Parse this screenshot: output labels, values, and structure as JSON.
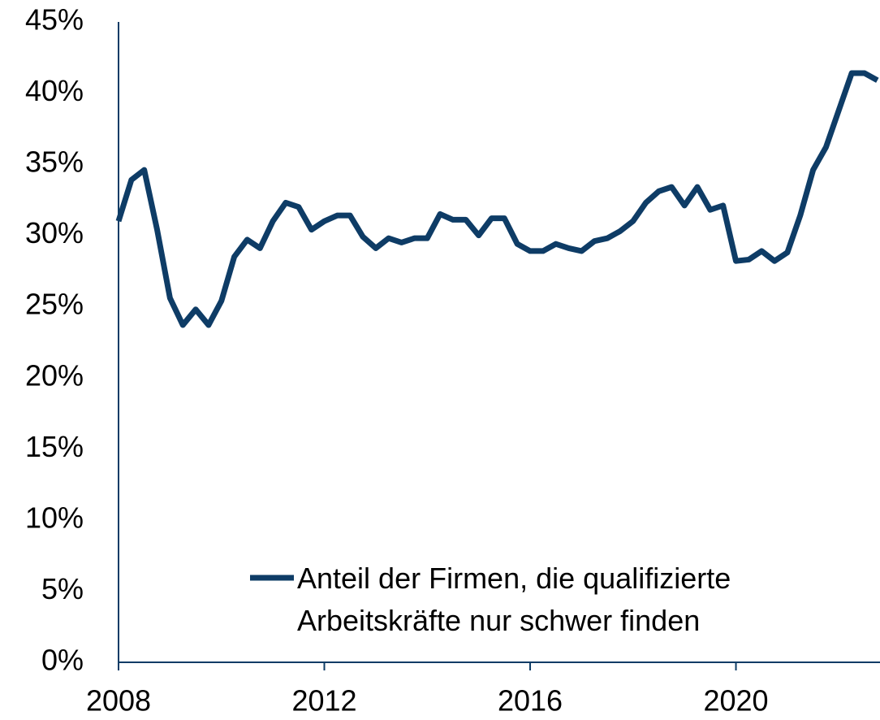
{
  "chart_data": {
    "type": "line",
    "x": [
      2008,
      2008.25,
      2008.5,
      2008.75,
      2009,
      2009.25,
      2009.5,
      2009.75,
      2010,
      2010.25,
      2010.5,
      2010.75,
      2011,
      2011.25,
      2011.5,
      2011.75,
      2012,
      2012.25,
      2012.5,
      2012.75,
      2013,
      2013.25,
      2013.5,
      2013.75,
      2014,
      2014.25,
      2014.5,
      2014.75,
      2015,
      2015.25,
      2015.5,
      2015.75,
      2016,
      2016.25,
      2016.5,
      2016.75,
      2017,
      2017.25,
      2017.5,
      2017.75,
      2018,
      2018.25,
      2018.5,
      2018.75,
      2019,
      2019.25,
      2019.5,
      2019.75,
      2020,
      2020.25,
      2020.5,
      2020.75,
      2021,
      2021.25,
      2021.5,
      2021.75,
      2022,
      2022.25,
      2022.5,
      2022.75
    ],
    "series": [
      {
        "name": "Anteil der Firmen, die qualifizierte Arbeitskräfte nur schwer finden",
        "color": "#0e3c66",
        "values": [
          31.0,
          33.9,
          34.6,
          30.4,
          25.6,
          23.7,
          24.8,
          23.7,
          25.4,
          28.5,
          29.7,
          29.1,
          31.0,
          32.3,
          32.0,
          30.4,
          31.0,
          31.4,
          31.4,
          29.9,
          29.1,
          29.8,
          29.5,
          29.8,
          29.8,
          31.5,
          31.1,
          31.1,
          30.0,
          31.2,
          31.2,
          29.4,
          28.9,
          28.9,
          29.4,
          29.1,
          28.9,
          29.6,
          29.8,
          30.3,
          31.0,
          32.3,
          33.1,
          33.4,
          32.1,
          33.4,
          31.8,
          32.1,
          28.2,
          28.3,
          28.9,
          28.2,
          28.8,
          31.4,
          34.6,
          36.2,
          38.8,
          41.4,
          41.4,
          40.9
        ]
      }
    ],
    "xlim": [
      2008,
      2022.8
    ],
    "xticks": [
      2008,
      2012,
      2016,
      2020
    ],
    "ylim": [
      0,
      45
    ],
    "yticks": [
      {
        "value": 0,
        "label": "0%"
      },
      {
        "value": 5,
        "label": "5%"
      },
      {
        "value": 10,
        "label": "10%"
      },
      {
        "value": 15,
        "label": "15%"
      },
      {
        "value": 20,
        "label": "20%"
      },
      {
        "value": 25,
        "label": "25%"
      },
      {
        "value": 30,
        "label": "30%"
      },
      {
        "value": 35,
        "label": "35%"
      },
      {
        "value": 40,
        "label": "40%"
      },
      {
        "value": 45,
        "label": "45%"
      }
    ],
    "grid": false
  }
}
